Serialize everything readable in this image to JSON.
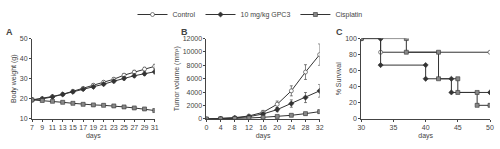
{
  "chart_data": [
    {
      "type": "line",
      "title": "A",
      "xlabel": "days",
      "ylabel": "Body weight (g)",
      "x": [
        7,
        9,
        11,
        13,
        15,
        17,
        19,
        21,
        23,
        25,
        27,
        29,
        31
      ],
      "xlim": [
        7,
        31
      ],
      "ylim": [
        10,
        50
      ],
      "xticks": [
        7,
        9,
        11,
        13,
        15,
        17,
        19,
        21,
        23,
        25,
        27,
        29,
        31
      ],
      "yticks": [
        10,
        20,
        30,
        40,
        50
      ],
      "grid": false,
      "legend": "top",
      "color": "#333333",
      "series": [
        {
          "name": "Control",
          "marker": "circle",
          "color": "white",
          "values": [
            19.5,
            20.2,
            21.2,
            22.3,
            23.8,
            25.2,
            26.8,
            28.3,
            29.8,
            31.8,
            33.3,
            34.8,
            36.2
          ],
          "errors": [
            0.4,
            0.4,
            0.5,
            0.5,
            0.6,
            0.6,
            0.7,
            0.7,
            0.8,
            0.8,
            0.9,
            0.9,
            1.0
          ]
        },
        {
          "name": "10 mg/kg GPC3",
          "marker": "diamond",
          "color": "#333333",
          "values": [
            19.5,
            20.0,
            21.0,
            22.2,
            23.5,
            24.8,
            26.0,
            27.3,
            28.8,
            30.2,
            31.5,
            32.5,
            33.5
          ],
          "errors": [
            0.4,
            0.4,
            0.5,
            0.5,
            0.6,
            0.6,
            0.7,
            0.7,
            0.8,
            0.8,
            0.9,
            0.9,
            1.0
          ]
        },
        {
          "name": "Cisplatin",
          "marker": "square",
          "color": "#888888",
          "values": [
            19.5,
            19.2,
            18.8,
            18.3,
            17.8,
            17.3,
            17.0,
            16.8,
            16.5,
            16.0,
            15.5,
            15.0,
            14.2
          ],
          "errors": [
            0.4,
            0.4,
            0.4,
            0.4,
            0.4,
            0.4,
            0.4,
            0.5,
            0.5,
            0.5,
            0.5,
            0.6,
            0.6
          ]
        }
      ]
    },
    {
      "type": "line",
      "title": "B",
      "xlabel": "days",
      "ylabel": "Tumor volume (mm³)",
      "x": [
        0,
        4,
        8,
        12,
        16,
        20,
        24,
        28,
        32
      ],
      "xlim": [
        0,
        32
      ],
      "ylim": [
        0,
        12000
      ],
      "xticks": [
        0,
        4,
        8,
        12,
        16,
        20,
        24,
        28,
        32
      ],
      "yticks": [
        0,
        2000,
        4000,
        6000,
        8000,
        10000,
        12000
      ],
      "grid": false,
      "legend": "top",
      "color": "#333333",
      "series": [
        {
          "name": "Control",
          "marker": "circle",
          "color": "white",
          "values": [
            0,
            60,
            200,
            450,
            1000,
            2200,
            4200,
            7000,
            9600
          ],
          "errors": [
            0,
            30,
            80,
            130,
            280,
            480,
            750,
            1100,
            1600
          ]
        },
        {
          "name": "10 mg/kg GPC3",
          "marker": "diamond",
          "color": "#333333",
          "values": [
            0,
            50,
            150,
            350,
            750,
            1400,
            2300,
            3200,
            4200
          ],
          "errors": [
            0,
            25,
            60,
            110,
            200,
            320,
            550,
            750,
            950
          ]
        },
        {
          "name": "Cisplatin",
          "marker": "square",
          "color": "#888888",
          "values": [
            0,
            30,
            80,
            150,
            250,
            380,
            550,
            800,
            1100
          ],
          "errors": [
            0,
            15,
            35,
            55,
            75,
            100,
            140,
            190,
            240
          ]
        }
      ]
    },
    {
      "type": "step",
      "title": "C",
      "xlabel": "days",
      "ylabel": "% Survival",
      "xlim": [
        30,
        50
      ],
      "ylim": [
        0,
        100
      ],
      "xticks": [
        30,
        35,
        40,
        45,
        50
      ],
      "yticks": [
        0,
        20,
        40,
        60,
        80,
        100
      ],
      "grid": false,
      "legend": "top",
      "color": "#333333",
      "series": [
        {
          "name": "Control",
          "marker": "circle",
          "color": "white",
          "x": [
            30,
            33,
            33,
            50
          ],
          "values": [
            100,
            100,
            83,
            83
          ]
        },
        {
          "name": "10 mg/kg GPC3",
          "marker": "diamond",
          "color": "#333333",
          "x": [
            30,
            33,
            33,
            40,
            40,
            44,
            44,
            50
          ],
          "values": [
            100,
            100,
            67,
            67,
            50,
            50,
            33,
            33
          ]
        },
        {
          "name": "Cisplatin",
          "marker": "square",
          "color": "#888888",
          "x": [
            30,
            37,
            37,
            42,
            42,
            45,
            45,
            48,
            48,
            50
          ],
          "values": [
            100,
            100,
            83,
            83,
            50,
            50,
            33,
            33,
            17,
            17
          ]
        }
      ]
    }
  ]
}
